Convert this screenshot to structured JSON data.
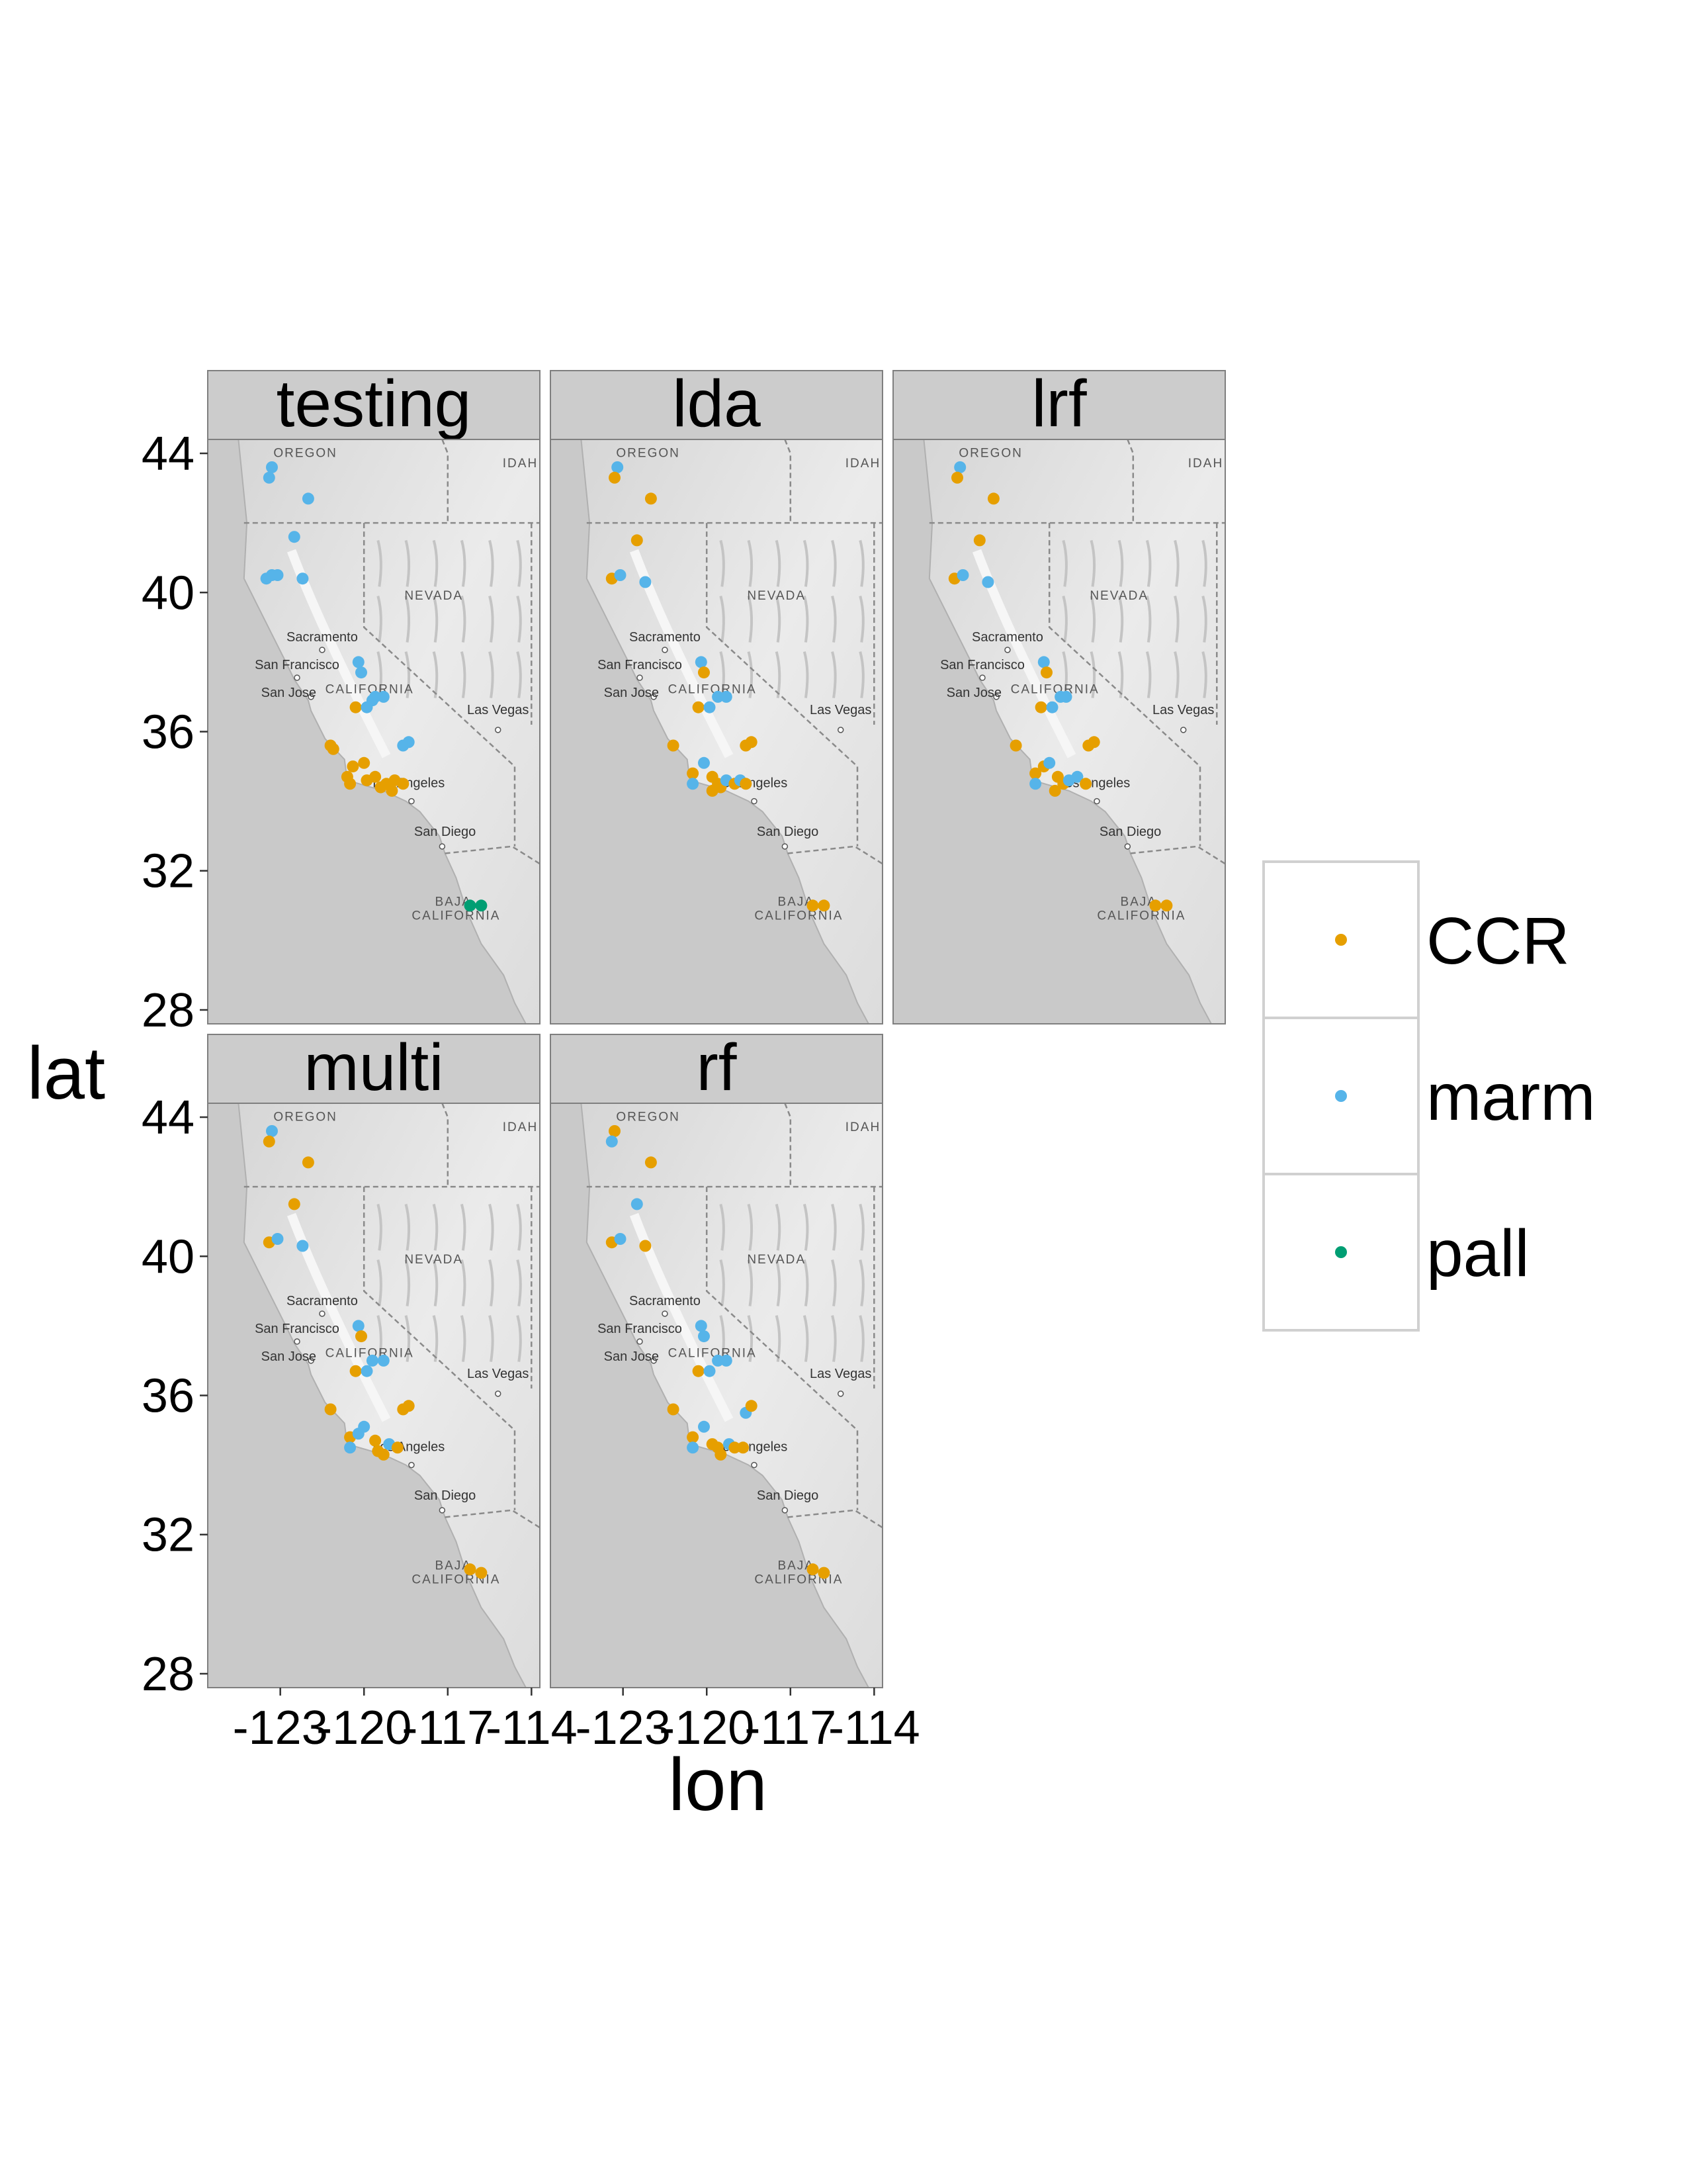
{
  "chart_data": {
    "type": "scatter",
    "subtype": "faceted map scatter",
    "xlabel": "lon",
    "ylabel": "lat",
    "xticks": [
      -123,
      -120,
      -117,
      -114
    ],
    "xtick_labels": [
      "-123",
      "-120",
      "-117",
      "-114"
    ],
    "yticks": [
      28,
      32,
      36,
      40,
      44
    ],
    "xlim": [
      -125.6,
      -113.7
    ],
    "ylim": [
      27.6,
      44.4
    ],
    "grid": false,
    "legend_placement": "right",
    "legend": [
      {
        "name": "CCR",
        "color": "#E69F00"
      },
      {
        "name": "marm",
        "color": "#56B4E9"
      },
      {
        "name": "pall",
        "color": "#009E73"
      }
    ],
    "basemap_labels": {
      "regions": [
        {
          "text": "OREGON",
          "lon": -122.1,
          "lat": 43.9
        },
        {
          "text": "IDAH",
          "lon": -114.4,
          "lat": 43.6
        },
        {
          "text": "NEVADA",
          "lon": -117.5,
          "lat": 39.8
        },
        {
          "text": "CALIFORNIA",
          "lon": -119.8,
          "lat": 37.1
        },
        {
          "text": "BAJA",
          "lon": -116.8,
          "lat": 31.0
        },
        {
          "text": "CALIFORNIA",
          "lon": -116.7,
          "lat": 30.6
        }
      ],
      "cities": [
        {
          "text": "Sacramento",
          "lon": -121.5,
          "lat": 38.6,
          "dot": [
            -121.5,
            38.35
          ]
        },
        {
          "text": "San Francisco",
          "lon": -122.4,
          "lat": 37.8,
          "dot": [
            -122.4,
            37.55
          ]
        },
        {
          "text": "San Jose",
          "lon": -122.7,
          "lat": 37.0,
          "dot": [
            -121.9,
            37.0
          ]
        },
        {
          "text": "Las Vegas",
          "lon": -115.2,
          "lat": 36.5,
          "dot": [
            -115.2,
            36.05
          ]
        },
        {
          "text": "Los Angeles",
          "lon": -118.4,
          "lat": 34.4,
          "dot": [
            -118.3,
            34.0
          ]
        },
        {
          "text": "San Diego",
          "lon": -117.1,
          "lat": 33.0,
          "dot": [
            -117.2,
            32.7
          ]
        }
      ]
    },
    "facets": [
      {
        "label": "testing",
        "points": [
          {
            "lon": -123.3,
            "lat": 43.6,
            "cls": "marm"
          },
          {
            "lon": -123.4,
            "lat": 43.3,
            "cls": "marm"
          },
          {
            "lon": -122.0,
            "lat": 42.7,
            "cls": "marm"
          },
          {
            "lon": -122.5,
            "lat": 41.6,
            "cls": "marm"
          },
          {
            "lon": -123.5,
            "lat": 40.4,
            "cls": "marm"
          },
          {
            "lon": -123.3,
            "lat": 40.5,
            "cls": "marm"
          },
          {
            "lon": -123.1,
            "lat": 40.5,
            "cls": "marm"
          },
          {
            "lon": -122.2,
            "lat": 40.4,
            "cls": "marm"
          },
          {
            "lon": -120.2,
            "lat": 38.0,
            "cls": "marm"
          },
          {
            "lon": -120.1,
            "lat": 37.7,
            "cls": "marm"
          },
          {
            "lon": -120.3,
            "lat": 36.7,
            "cls": "CCR"
          },
          {
            "lon": -119.9,
            "lat": 36.7,
            "cls": "marm"
          },
          {
            "lon": -119.6,
            "lat": 37.0,
            "cls": "marm"
          },
          {
            "lon": -119.3,
            "lat": 37.0,
            "cls": "marm"
          },
          {
            "lon": -119.7,
            "lat": 36.9,
            "cls": "marm"
          },
          {
            "lon": -118.6,
            "lat": 35.6,
            "cls": "marm"
          },
          {
            "lon": -118.4,
            "lat": 35.7,
            "cls": "marm"
          },
          {
            "lon": -121.2,
            "lat": 35.6,
            "cls": "CCR"
          },
          {
            "lon": -121.1,
            "lat": 35.5,
            "cls": "CCR"
          },
          {
            "lon": -120.5,
            "lat": 34.5,
            "cls": "CCR"
          },
          {
            "lon": -120.6,
            "lat": 34.7,
            "cls": "CCR"
          },
          {
            "lon": -120.4,
            "lat": 35.0,
            "cls": "CCR"
          },
          {
            "lon": -120.0,
            "lat": 35.1,
            "cls": "CCR"
          },
          {
            "lon": -119.9,
            "lat": 34.6,
            "cls": "CCR"
          },
          {
            "lon": -119.6,
            "lat": 34.7,
            "cls": "CCR"
          },
          {
            "lon": -119.4,
            "lat": 34.4,
            "cls": "CCR"
          },
          {
            "lon": -119.2,
            "lat": 34.5,
            "cls": "CCR"
          },
          {
            "lon": -118.9,
            "lat": 34.6,
            "cls": "CCR"
          },
          {
            "lon": -118.6,
            "lat": 34.5,
            "cls": "CCR"
          },
          {
            "lon": -119.0,
            "lat": 34.3,
            "cls": "CCR"
          },
          {
            "lon": -116.2,
            "lat": 31.0,
            "cls": "pall"
          },
          {
            "lon": -115.8,
            "lat": 31.0,
            "cls": "pall"
          }
        ]
      },
      {
        "label": "lda",
        "points": [
          {
            "lon": -123.2,
            "lat": 43.6,
            "cls": "marm"
          },
          {
            "lon": -123.3,
            "lat": 43.3,
            "cls": "CCR"
          },
          {
            "lon": -122.0,
            "lat": 42.7,
            "cls": "CCR"
          },
          {
            "lon": -122.5,
            "lat": 41.5,
            "cls": "CCR"
          },
          {
            "lon": -123.4,
            "lat": 40.4,
            "cls": "CCR"
          },
          {
            "lon": -123.1,
            "lat": 40.5,
            "cls": "marm"
          },
          {
            "lon": -122.2,
            "lat": 40.3,
            "cls": "marm"
          },
          {
            "lon": -120.2,
            "lat": 38.0,
            "cls": "marm"
          },
          {
            "lon": -120.1,
            "lat": 37.7,
            "cls": "CCR"
          },
          {
            "lon": -120.3,
            "lat": 36.7,
            "cls": "CCR"
          },
          {
            "lon": -119.9,
            "lat": 36.7,
            "cls": "marm"
          },
          {
            "lon": -119.6,
            "lat": 37.0,
            "cls": "marm"
          },
          {
            "lon": -119.3,
            "lat": 37.0,
            "cls": "marm"
          },
          {
            "lon": -118.6,
            "lat": 35.6,
            "cls": "CCR"
          },
          {
            "lon": -118.4,
            "lat": 35.7,
            "cls": "CCR"
          },
          {
            "lon": -121.2,
            "lat": 35.6,
            "cls": "CCR"
          },
          {
            "lon": -120.5,
            "lat": 34.8,
            "cls": "CCR"
          },
          {
            "lon": -120.5,
            "lat": 34.5,
            "cls": "marm"
          },
          {
            "lon": -120.1,
            "lat": 35.1,
            "cls": "marm"
          },
          {
            "lon": -119.8,
            "lat": 34.7,
            "cls": "CCR"
          },
          {
            "lon": -119.6,
            "lat": 34.5,
            "cls": "CCR"
          },
          {
            "lon": -119.5,
            "lat": 34.4,
            "cls": "CCR"
          },
          {
            "lon": -119.3,
            "lat": 34.6,
            "cls": "marm"
          },
          {
            "lon": -119.0,
            "lat": 34.5,
            "cls": "CCR"
          },
          {
            "lon": -118.8,
            "lat": 34.6,
            "cls": "marm"
          },
          {
            "lon": -118.6,
            "lat": 34.5,
            "cls": "CCR"
          },
          {
            "lon": -119.8,
            "lat": 34.3,
            "cls": "CCR"
          },
          {
            "lon": -116.2,
            "lat": 31.0,
            "cls": "CCR"
          },
          {
            "lon": -115.8,
            "lat": 31.0,
            "cls": "CCR"
          }
        ]
      },
      {
        "label": "lrf",
        "points": [
          {
            "lon": -123.2,
            "lat": 43.6,
            "cls": "marm"
          },
          {
            "lon": -123.3,
            "lat": 43.3,
            "cls": "CCR"
          },
          {
            "lon": -122.0,
            "lat": 42.7,
            "cls": "CCR"
          },
          {
            "lon": -122.5,
            "lat": 41.5,
            "cls": "CCR"
          },
          {
            "lon": -123.4,
            "lat": 40.4,
            "cls": "CCR"
          },
          {
            "lon": -123.1,
            "lat": 40.5,
            "cls": "marm"
          },
          {
            "lon": -122.2,
            "lat": 40.3,
            "cls": "marm"
          },
          {
            "lon": -120.2,
            "lat": 38.0,
            "cls": "marm"
          },
          {
            "lon": -120.1,
            "lat": 37.7,
            "cls": "CCR"
          },
          {
            "lon": -120.3,
            "lat": 36.7,
            "cls": "CCR"
          },
          {
            "lon": -119.9,
            "lat": 36.7,
            "cls": "marm"
          },
          {
            "lon": -119.6,
            "lat": 37.0,
            "cls": "marm"
          },
          {
            "lon": -119.4,
            "lat": 37.0,
            "cls": "marm"
          },
          {
            "lon": -118.6,
            "lat": 35.6,
            "cls": "CCR"
          },
          {
            "lon": -118.4,
            "lat": 35.7,
            "cls": "CCR"
          },
          {
            "lon": -121.2,
            "lat": 35.6,
            "cls": "CCR"
          },
          {
            "lon": -120.5,
            "lat": 34.8,
            "cls": "CCR"
          },
          {
            "lon": -120.5,
            "lat": 34.5,
            "cls": "marm"
          },
          {
            "lon": -120.2,
            "lat": 35.0,
            "cls": "CCR"
          },
          {
            "lon": -120.0,
            "lat": 35.1,
            "cls": "marm"
          },
          {
            "lon": -119.7,
            "lat": 34.7,
            "cls": "CCR"
          },
          {
            "lon": -119.5,
            "lat": 34.5,
            "cls": "CCR"
          },
          {
            "lon": -119.3,
            "lat": 34.6,
            "cls": "marm"
          },
          {
            "lon": -119.0,
            "lat": 34.7,
            "cls": "marm"
          },
          {
            "lon": -118.7,
            "lat": 34.5,
            "cls": "CCR"
          },
          {
            "lon": -119.8,
            "lat": 34.3,
            "cls": "CCR"
          },
          {
            "lon": -116.2,
            "lat": 31.0,
            "cls": "CCR"
          },
          {
            "lon": -115.8,
            "lat": 31.0,
            "cls": "CCR"
          }
        ]
      },
      {
        "label": "multi",
        "points": [
          {
            "lon": -123.3,
            "lat": 43.6,
            "cls": "marm"
          },
          {
            "lon": -123.4,
            "lat": 43.3,
            "cls": "CCR"
          },
          {
            "lon": -122.0,
            "lat": 42.7,
            "cls": "CCR"
          },
          {
            "lon": -122.5,
            "lat": 41.5,
            "cls": "CCR"
          },
          {
            "lon": -123.4,
            "lat": 40.4,
            "cls": "CCR"
          },
          {
            "lon": -123.1,
            "lat": 40.5,
            "cls": "marm"
          },
          {
            "lon": -122.2,
            "lat": 40.3,
            "cls": "marm"
          },
          {
            "lon": -120.2,
            "lat": 38.0,
            "cls": "marm"
          },
          {
            "lon": -120.1,
            "lat": 37.7,
            "cls": "CCR"
          },
          {
            "lon": -120.3,
            "lat": 36.7,
            "cls": "CCR"
          },
          {
            "lon": -119.9,
            "lat": 36.7,
            "cls": "marm"
          },
          {
            "lon": -119.7,
            "lat": 37.0,
            "cls": "marm"
          },
          {
            "lon": -119.3,
            "lat": 37.0,
            "cls": "marm"
          },
          {
            "lon": -118.6,
            "lat": 35.6,
            "cls": "CCR"
          },
          {
            "lon": -118.4,
            "lat": 35.7,
            "cls": "CCR"
          },
          {
            "lon": -121.2,
            "lat": 35.6,
            "cls": "CCR"
          },
          {
            "lon": -120.5,
            "lat": 34.8,
            "cls": "CCR"
          },
          {
            "lon": -120.5,
            "lat": 34.5,
            "cls": "marm"
          },
          {
            "lon": -120.2,
            "lat": 34.9,
            "cls": "marm"
          },
          {
            "lon": -120.0,
            "lat": 35.1,
            "cls": "marm"
          },
          {
            "lon": -119.6,
            "lat": 34.7,
            "cls": "CCR"
          },
          {
            "lon": -119.5,
            "lat": 34.4,
            "cls": "CCR"
          },
          {
            "lon": -119.3,
            "lat": 34.3,
            "cls": "CCR"
          },
          {
            "lon": -119.1,
            "lat": 34.6,
            "cls": "marm"
          },
          {
            "lon": -118.8,
            "lat": 34.5,
            "cls": "CCR"
          },
          {
            "lon": -116.2,
            "lat": 31.0,
            "cls": "CCR"
          },
          {
            "lon": -115.8,
            "lat": 30.9,
            "cls": "CCR"
          }
        ]
      },
      {
        "label": "rf",
        "points": [
          {
            "lon": -123.3,
            "lat": 43.6,
            "cls": "CCR"
          },
          {
            "lon": -123.4,
            "lat": 43.3,
            "cls": "marm"
          },
          {
            "lon": -122.0,
            "lat": 42.7,
            "cls": "CCR"
          },
          {
            "lon": -122.5,
            "lat": 41.5,
            "cls": "marm"
          },
          {
            "lon": -123.4,
            "lat": 40.4,
            "cls": "CCR"
          },
          {
            "lon": -123.1,
            "lat": 40.5,
            "cls": "marm"
          },
          {
            "lon": -122.2,
            "lat": 40.3,
            "cls": "CCR"
          },
          {
            "lon": -120.2,
            "lat": 38.0,
            "cls": "marm"
          },
          {
            "lon": -120.1,
            "lat": 37.7,
            "cls": "marm"
          },
          {
            "lon": -120.3,
            "lat": 36.7,
            "cls": "CCR"
          },
          {
            "lon": -119.9,
            "lat": 36.7,
            "cls": "marm"
          },
          {
            "lon": -119.6,
            "lat": 37.0,
            "cls": "marm"
          },
          {
            "lon": -119.3,
            "lat": 37.0,
            "cls": "marm"
          },
          {
            "lon": -118.6,
            "lat": 35.5,
            "cls": "marm"
          },
          {
            "lon": -118.4,
            "lat": 35.7,
            "cls": "CCR"
          },
          {
            "lon": -121.2,
            "lat": 35.6,
            "cls": "CCR"
          },
          {
            "lon": -120.5,
            "lat": 34.8,
            "cls": "CCR"
          },
          {
            "lon": -120.5,
            "lat": 34.5,
            "cls": "marm"
          },
          {
            "lon": -120.1,
            "lat": 35.1,
            "cls": "marm"
          },
          {
            "lon": -119.8,
            "lat": 34.6,
            "cls": "CCR"
          },
          {
            "lon": -119.6,
            "lat": 34.5,
            "cls": "CCR"
          },
          {
            "lon": -119.5,
            "lat": 34.3,
            "cls": "CCR"
          },
          {
            "lon": -119.2,
            "lat": 34.6,
            "cls": "marm"
          },
          {
            "lon": -119.0,
            "lat": 34.5,
            "cls": "CCR"
          },
          {
            "lon": -118.7,
            "lat": 34.5,
            "cls": "CCR"
          },
          {
            "lon": -116.2,
            "lat": 31.0,
            "cls": "CCR"
          },
          {
            "lon": -115.8,
            "lat": 30.9,
            "cls": "CCR"
          }
        ]
      }
    ]
  }
}
